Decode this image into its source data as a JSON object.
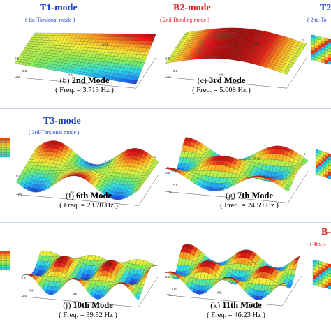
{
  "colors": {
    "blue_title": "#1f3fd0",
    "red_title": "#e32222",
    "separator": "#c6d8e8",
    "colormap": [
      "#1e2bd0",
      "#1ea0ff",
      "#2ee0e0",
      "#7fee5a",
      "#f4ee36",
      "#ff9a1a",
      "#e81b12",
      "#a80a0a"
    ]
  },
  "rows": [
    {
      "panels": [
        {
          "id": "b",
          "mode_title": "T1-mode",
          "mode_title_color": "blue",
          "mode_subtitle": "( 1st-Torsional mode )",
          "caption_prefix": "(b)",
          "caption_mode": "2nd Mode",
          "caption_freq": "( Freq. = 3.713 Hz )",
          "shape": "torsion1",
          "tick_labels": [
            "0.5",
            "0.5",
            "0.75",
            "1",
            "Y/L",
            "X/L"
          ]
        },
        {
          "id": "c",
          "mode_title": "B2-mode",
          "mode_title_color": "red",
          "mode_subtitle": "( 2nd-Bending mode )",
          "caption_prefix": "(c)",
          "caption_mode": "3rd Mode",
          "caption_freq": "( Freq. = 5.608 Hz )",
          "shape": "bending2",
          "tick_labels": [
            "0.5",
            "0.5",
            "0.75",
            "1",
            "Y/L",
            "X/L"
          ]
        },
        {
          "id": "d",
          "mode_title": "T2",
          "mode_title_color": "blue",
          "mode_subtitle": "( 2nd-To",
          "shape": "partial_right"
        }
      ]
    },
    {
      "panels": [
        {
          "id": "e",
          "shape": "partial_left"
        },
        {
          "id": "f",
          "mode_title": "T3-mode",
          "mode_title_color": "blue",
          "mode_subtitle": "( 3rd-Torsional mode )",
          "caption_prefix": "(f)",
          "caption_mode": "6th Mode",
          "caption_freq": "( Freq. = 23.70 Hz )",
          "shape": "torsion3",
          "tick_labels": [
            "0.5",
            "0.5",
            "0.75",
            "1",
            "Y/L",
            "X/L"
          ]
        },
        {
          "id": "g",
          "caption_prefix": "(g)",
          "caption_mode": "7th Mode",
          "caption_freq": "( Freq. = 24.59 Hz )",
          "shape": "mode7",
          "tick_labels": [
            "0.5",
            "0.5",
            "0.75",
            "1",
            "Y/L",
            "X/L"
          ]
        },
        {
          "id": "h",
          "shape": "partial_right"
        }
      ]
    },
    {
      "panels": [
        {
          "id": "i",
          "shape": "partial_left"
        },
        {
          "id": "j",
          "caption_prefix": "(j)",
          "caption_mode": "10th Mode",
          "caption_freq": "( Freq. = 39.52 Hz )",
          "shape": "mode10",
          "tick_labels": [
            "0.5",
            "0.5",
            "0.75",
            "1",
            "Y/L",
            "X/L"
          ]
        },
        {
          "id": "k",
          "caption_prefix": "(k)",
          "caption_mode": "11th Mode",
          "caption_freq": "( Freq. = 46.23 Hz )",
          "shape": "mode11",
          "tick_labels": [
            "0.5",
            "0.5",
            "0.75",
            "1",
            "Y/L",
            "X/L"
          ]
        },
        {
          "id": "l",
          "mode_title": "B-",
          "mode_title_color": "red",
          "mode_subtitle": "( 4th-B",
          "shape": "partial_right"
        }
      ]
    }
  ]
}
